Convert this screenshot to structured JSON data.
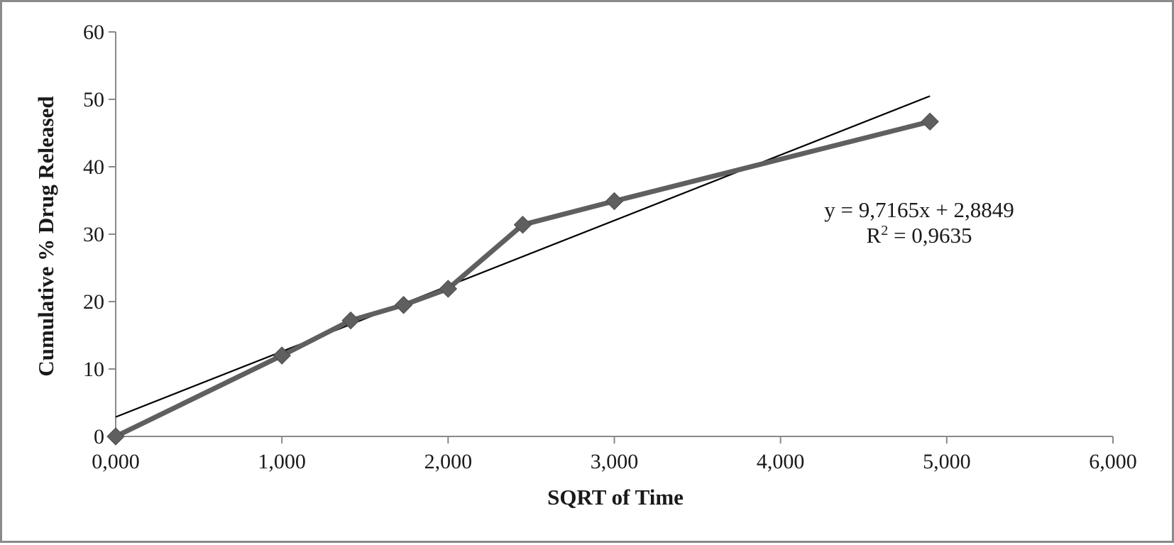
{
  "chart_data": {
    "type": "scatter",
    "title": "",
    "xlabel": "SQRT of Time",
    "ylabel": "Cumulative % Drug Released",
    "xlim": [
      0,
      6
    ],
    "ylim": [
      0,
      60
    ],
    "x_ticks": [
      0,
      1,
      2,
      3,
      4,
      5,
      6
    ],
    "x_tick_labels": [
      "0,000",
      "1,000",
      "2,000",
      "3,000",
      "4,000",
      "5,000",
      "6,000"
    ],
    "y_ticks": [
      0,
      10,
      20,
      30,
      40,
      50,
      60
    ],
    "y_tick_labels": [
      "0",
      "10",
      "20",
      "30",
      "40",
      "50",
      "60"
    ],
    "grid": false,
    "legend": "none",
    "series": [
      {
        "x": [
          0,
          1.0,
          1.414,
          1.732,
          2.0,
          2.449,
          3.0,
          4.899
        ],
        "y": [
          0,
          12.0,
          17.2,
          19.5,
          21.9,
          31.4,
          34.9,
          46.7
        ],
        "color": "#5f5f5f",
        "marker": "diamond",
        "line": true
      }
    ],
    "trendline": {
      "type": "linear",
      "slope": 9.7165,
      "intercept": 2.8849,
      "x_range": [
        0,
        4.899
      ],
      "color": "#000000"
    },
    "annotations": {
      "equation": "y = 9,7165x + 2,8849",
      "r_squared_prefix": "R",
      "r_squared_exp": "2",
      "r_squared_value": " = 0,9635"
    }
  }
}
